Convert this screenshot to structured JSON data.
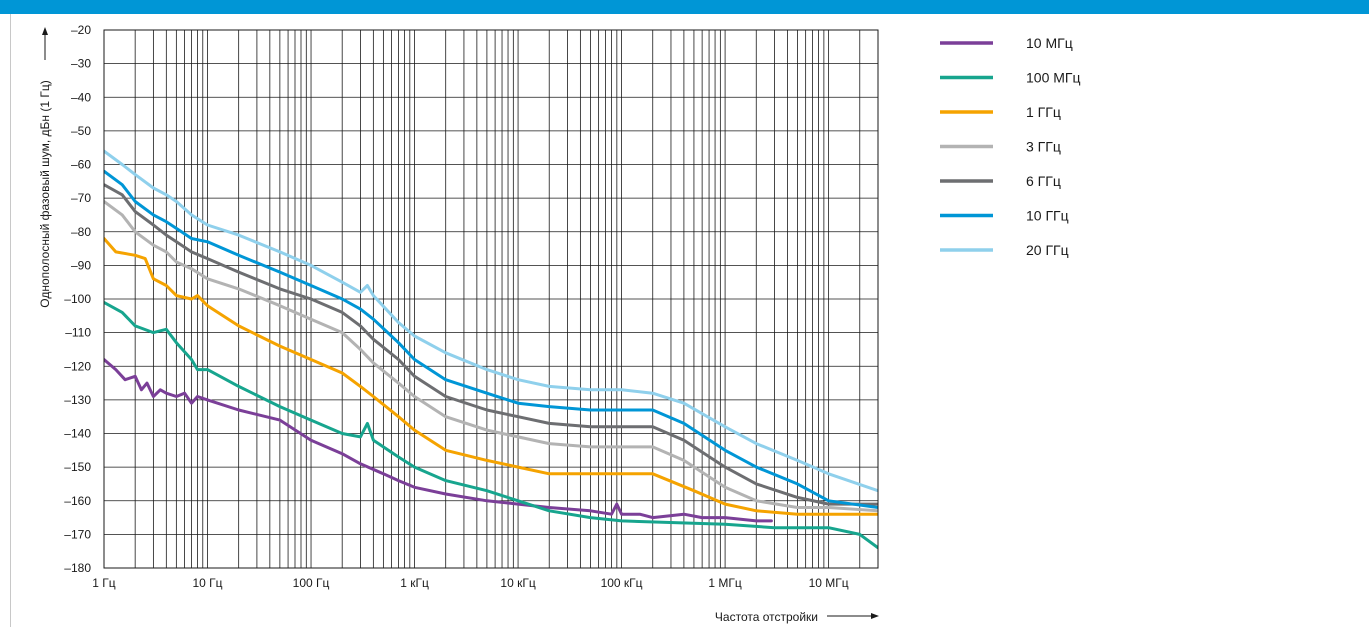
{
  "chart_data": {
    "type": "line",
    "title": "",
    "xlabel": "Частота отстройки",
    "ylabel": "Однополосный фазовый шум, дБн (1 Гц)",
    "x_scale": "log",
    "xlim": [
      1,
      30000000
    ],
    "ylim": [
      -180,
      -20
    ],
    "x_ticks": [
      {
        "value": 1,
        "label": "1 Гц"
      },
      {
        "value": 10,
        "label": "10 Гц"
      },
      {
        "value": 100,
        "label": "100 Гц"
      },
      {
        "value": 1000,
        "label": "1 кГц"
      },
      {
        "value": 10000,
        "label": "10 кГц"
      },
      {
        "value": 100000,
        "label": "100 кГц"
      },
      {
        "value": 1000000,
        "label": "1 МГц"
      },
      {
        "value": 10000000,
        "label": "10 МГц"
      }
    ],
    "y_ticks": [
      {
        "value": -20,
        "label": "–20"
      },
      {
        "value": -30,
        "label": "–30"
      },
      {
        "value": -40,
        "label": "–40"
      },
      {
        "value": -50,
        "label": "–50"
      },
      {
        "value": -60,
        "label": "–60"
      },
      {
        "value": -70,
        "label": "–70"
      },
      {
        "value": -80,
        "label": "–80"
      },
      {
        "value": -90,
        "label": "–90"
      },
      {
        "value": -100,
        "label": "–100"
      },
      {
        "value": -110,
        "label": "–110"
      },
      {
        "value": -120,
        "label": "–120"
      },
      {
        "value": -130,
        "label": "–130"
      },
      {
        "value": -140,
        "label": "–140"
      },
      {
        "value": -150,
        "label": "–150"
      },
      {
        "value": -160,
        "label": "–160"
      },
      {
        "value": -170,
        "label": "–170"
      },
      {
        "value": -180,
        "label": "–180"
      }
    ],
    "grid": true,
    "legend_position": "right",
    "series": [
      {
        "name": "10 МГц",
        "color": "#7b3f98",
        "points": [
          [
            1,
            -118
          ],
          [
            1.3,
            -121
          ],
          [
            1.6,
            -124
          ],
          [
            2,
            -123
          ],
          [
            2.3,
            -127
          ],
          [
            2.6,
            -125
          ],
          [
            3,
            -129
          ],
          [
            3.5,
            -127
          ],
          [
            4,
            -128
          ],
          [
            5,
            -129
          ],
          [
            6,
            -128
          ],
          [
            7,
            -131
          ],
          [
            8,
            -129
          ],
          [
            10,
            -130
          ],
          [
            20,
            -133
          ],
          [
            50,
            -136
          ],
          [
            100,
            -142
          ],
          [
            200,
            -146
          ],
          [
            300,
            -149
          ],
          [
            500,
            -152
          ],
          [
            700,
            -154
          ],
          [
            1000,
            -156
          ],
          [
            2000,
            -158
          ],
          [
            5000,
            -160
          ],
          [
            10000,
            -161
          ],
          [
            20000,
            -162
          ],
          [
            50000,
            -163
          ],
          [
            80000,
            -164
          ],
          [
            90000,
            -161
          ],
          [
            100000,
            -164
          ],
          [
            150000,
            -164
          ],
          [
            200000,
            -165
          ],
          [
            400000,
            -164
          ],
          [
            600000,
            -165
          ],
          [
            1000000,
            -165
          ],
          [
            2000000,
            -166
          ],
          [
            2800000,
            -166
          ]
        ]
      },
      {
        "name": "100 МГц",
        "color": "#17a58e",
        "points": [
          [
            1,
            -101
          ],
          [
            1.5,
            -104
          ],
          [
            2,
            -108
          ],
          [
            3,
            -110
          ],
          [
            4,
            -109
          ],
          [
            5,
            -113
          ],
          [
            7,
            -118
          ],
          [
            8,
            -121
          ],
          [
            10,
            -121
          ],
          [
            20,
            -126
          ],
          [
            50,
            -132
          ],
          [
            100,
            -136
          ],
          [
            200,
            -140
          ],
          [
            300,
            -141
          ],
          [
            350,
            -137
          ],
          [
            400,
            -142
          ],
          [
            700,
            -147
          ],
          [
            1000,
            -150
          ],
          [
            2000,
            -154
          ],
          [
            5000,
            -157
          ],
          [
            10000,
            -160
          ],
          [
            20000,
            -163
          ],
          [
            50000,
            -165
          ],
          [
            100000,
            -166
          ],
          [
            1000000,
            -167
          ],
          [
            3000000,
            -168
          ],
          [
            10000000,
            -168
          ],
          [
            20000000,
            -170
          ],
          [
            30000000,
            -174
          ]
        ]
      },
      {
        "name": "1 ГГц",
        "color": "#f5a300",
        "points": [
          [
            1,
            -82
          ],
          [
            1.3,
            -86
          ],
          [
            2,
            -87
          ],
          [
            2.5,
            -88
          ],
          [
            3,
            -94
          ],
          [
            4,
            -96
          ],
          [
            5,
            -99
          ],
          [
            7,
            -100
          ],
          [
            8,
            -99
          ],
          [
            10,
            -102
          ],
          [
            20,
            -108
          ],
          [
            50,
            -114
          ],
          [
            100,
            -118
          ],
          [
            200,
            -122
          ],
          [
            300,
            -126
          ],
          [
            400,
            -129
          ],
          [
            700,
            -135
          ],
          [
            1000,
            -139
          ],
          [
            2000,
            -145
          ],
          [
            5000,
            -148
          ],
          [
            10000,
            -150
          ],
          [
            20000,
            -152
          ],
          [
            50000,
            -152
          ],
          [
            100000,
            -152
          ],
          [
            200000,
            -152
          ],
          [
            500000,
            -157
          ],
          [
            1000000,
            -161
          ],
          [
            2000000,
            -163
          ],
          [
            5000000,
            -164
          ],
          [
            10000000,
            -164
          ],
          [
            30000000,
            -164
          ]
        ]
      },
      {
        "name": "3 ГГц",
        "color": "#b3b3b3",
        "points": [
          [
            1,
            -71
          ],
          [
            1.5,
            -75
          ],
          [
            2,
            -80
          ],
          [
            3,
            -84
          ],
          [
            4,
            -86
          ],
          [
            5,
            -89
          ],
          [
            7,
            -91
          ],
          [
            10,
            -94
          ],
          [
            20,
            -97
          ],
          [
            50,
            -102
          ],
          [
            100,
            -106
          ],
          [
            200,
            -110
          ],
          [
            300,
            -115
          ],
          [
            400,
            -119
          ],
          [
            700,
            -125
          ],
          [
            1000,
            -129
          ],
          [
            2000,
            -135
          ],
          [
            5000,
            -139
          ],
          [
            10000,
            -141
          ],
          [
            20000,
            -143
          ],
          [
            50000,
            -144
          ],
          [
            100000,
            -144
          ],
          [
            200000,
            -144
          ],
          [
            400000,
            -148
          ],
          [
            1000000,
            -156
          ],
          [
            2000000,
            -160
          ],
          [
            5000000,
            -162
          ],
          [
            10000000,
            -162
          ],
          [
            30000000,
            -163
          ]
        ]
      },
      {
        "name": "6 ГГц",
        "color": "#6d6e71",
        "points": [
          [
            1,
            -66
          ],
          [
            1.5,
            -69
          ],
          [
            2,
            -74
          ],
          [
            3,
            -78
          ],
          [
            4,
            -81
          ],
          [
            5,
            -83
          ],
          [
            7,
            -86
          ],
          [
            10,
            -88
          ],
          [
            20,
            -92
          ],
          [
            50,
            -97
          ],
          [
            100,
            -100
          ],
          [
            200,
            -104
          ],
          [
            300,
            -108
          ],
          [
            400,
            -112
          ],
          [
            700,
            -118
          ],
          [
            1000,
            -123
          ],
          [
            2000,
            -129
          ],
          [
            5000,
            -133
          ],
          [
            10000,
            -135
          ],
          [
            20000,
            -137
          ],
          [
            50000,
            -138
          ],
          [
            100000,
            -138
          ],
          [
            200000,
            -138
          ],
          [
            400000,
            -142
          ],
          [
            1000000,
            -150
          ],
          [
            2000000,
            -155
          ],
          [
            5000000,
            -159
          ],
          [
            10000000,
            -161
          ],
          [
            30000000,
            -161
          ]
        ]
      },
      {
        "name": "10 ГГц",
        "color": "#0096d6",
        "points": [
          [
            1,
            -62
          ],
          [
            1.5,
            -66
          ],
          [
            2,
            -71
          ],
          [
            3,
            -75
          ],
          [
            4,
            -77
          ],
          [
            5,
            -79
          ],
          [
            7,
            -82
          ],
          [
            10,
            -83
          ],
          [
            20,
            -87
          ],
          [
            50,
            -92
          ],
          [
            100,
            -96
          ],
          [
            200,
            -100
          ],
          [
            300,
            -103
          ],
          [
            400,
            -106
          ],
          [
            700,
            -113
          ],
          [
            1000,
            -118
          ],
          [
            2000,
            -124
          ],
          [
            5000,
            -128
          ],
          [
            10000,
            -131
          ],
          [
            20000,
            -132
          ],
          [
            50000,
            -133
          ],
          [
            100000,
            -133
          ],
          [
            200000,
            -133
          ],
          [
            400000,
            -137
          ],
          [
            1000000,
            -145
          ],
          [
            2000000,
            -150
          ],
          [
            5000000,
            -155
          ],
          [
            10000000,
            -160
          ],
          [
            30000000,
            -162
          ]
        ]
      },
      {
        "name": "20 ГГц",
        "color": "#8fd0ec",
        "points": [
          [
            1,
            -56
          ],
          [
            1.5,
            -60
          ],
          [
            2,
            -63
          ],
          [
            3,
            -67
          ],
          [
            4,
            -69
          ],
          [
            5,
            -71
          ],
          [
            7,
            -75
          ],
          [
            10,
            -78
          ],
          [
            20,
            -81
          ],
          [
            50,
            -86
          ],
          [
            100,
            -90
          ],
          [
            200,
            -95
          ],
          [
            300,
            -98
          ],
          [
            350,
            -96
          ],
          [
            400,
            -99
          ],
          [
            700,
            -107
          ],
          [
            1000,
            -111
          ],
          [
            2000,
            -116
          ],
          [
            5000,
            -121
          ],
          [
            10000,
            -124
          ],
          [
            20000,
            -126
          ],
          [
            50000,
            -127
          ],
          [
            100000,
            -127
          ],
          [
            200000,
            -128
          ],
          [
            400000,
            -131
          ],
          [
            1000000,
            -138
          ],
          [
            2000000,
            -143
          ],
          [
            5000000,
            -148
          ],
          [
            10000000,
            -152
          ],
          [
            30000000,
            -157
          ]
        ]
      }
    ]
  }
}
